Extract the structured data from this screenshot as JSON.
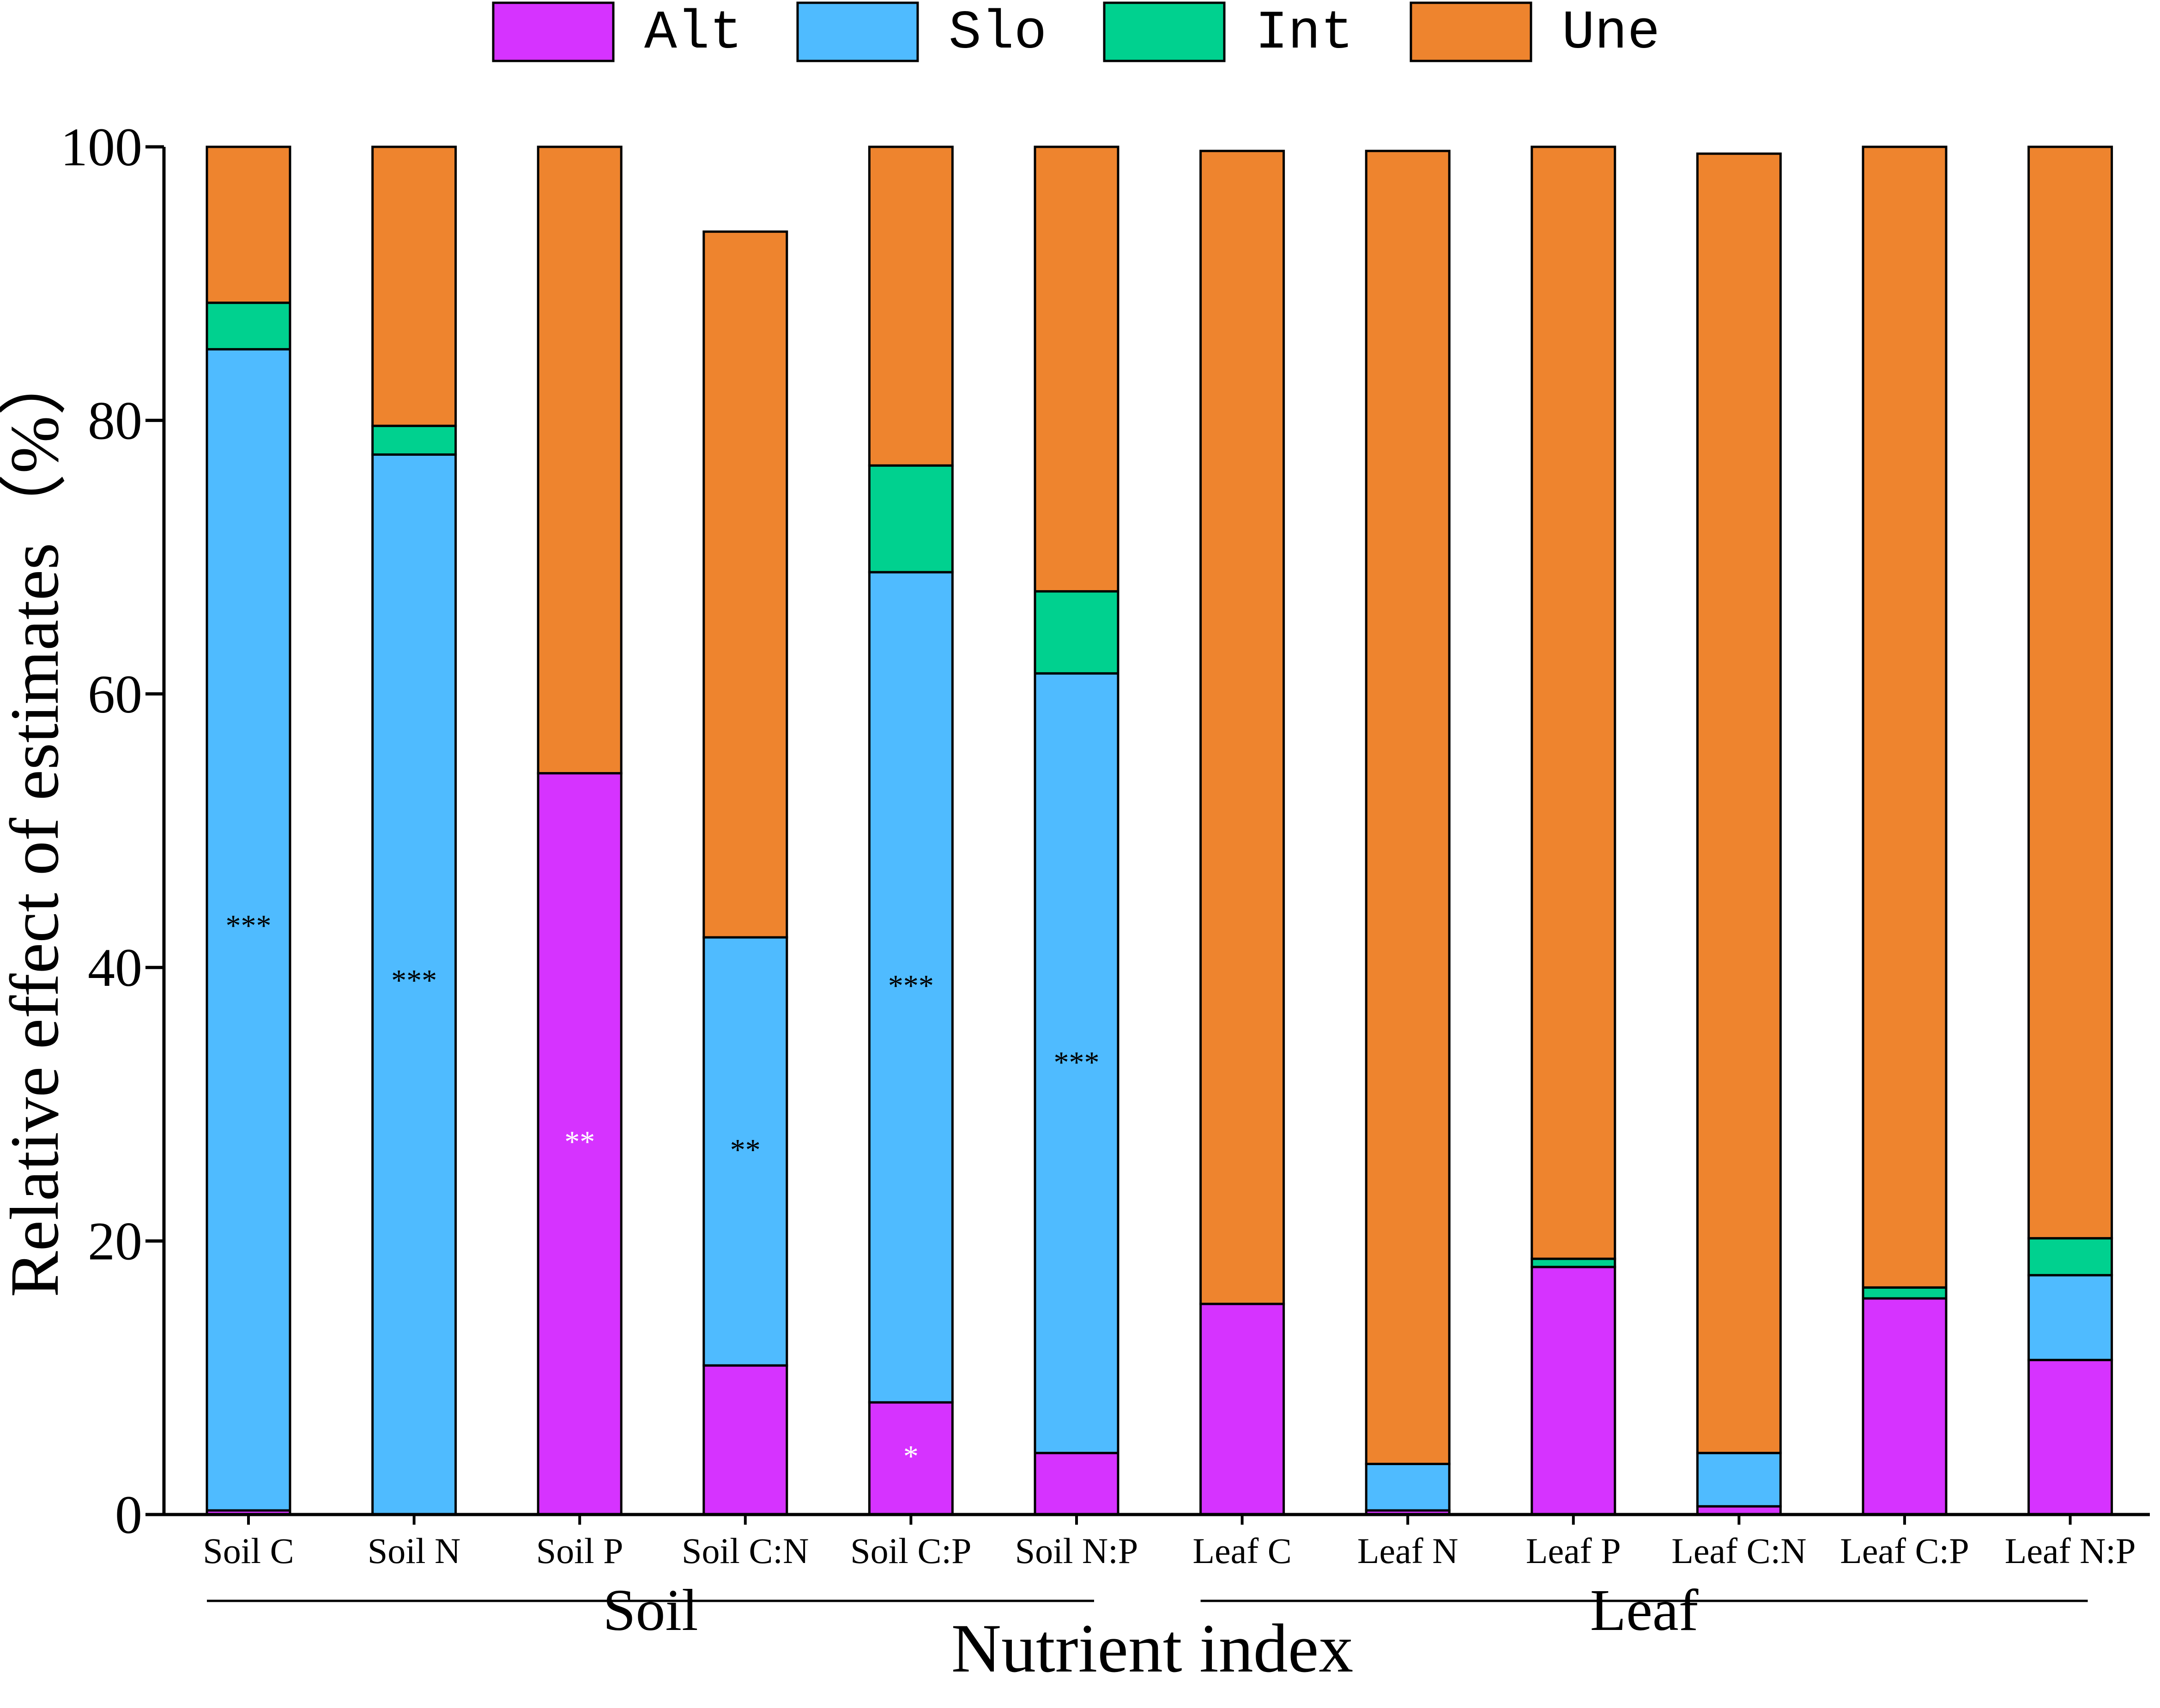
{
  "chart_data": {
    "type": "bar",
    "stacked": true,
    "title": "",
    "xlabel": "Nutrient index",
    "ylabel": "Relative effect of estimates（%）",
    "ylim": [
      0,
      100
    ],
    "yticks": [
      0,
      20,
      40,
      60,
      80,
      100
    ],
    "grid": false,
    "legend_position": "top",
    "categories": [
      "Soil C",
      "Soil N",
      "Soil P",
      "Soil C:N",
      "Soil C:P",
      "Soil N:P",
      "Leaf C",
      "Leaf N",
      "Leaf P",
      "Leaf C:N",
      "Leaf C:P",
      "Leaf N:P"
    ],
    "series": [
      {
        "name": "Alt",
        "color": "#D633FF",
        "values": [
          0.3,
          0,
          54.2,
          10.9,
          8.2,
          4.5,
          15.4,
          0.3,
          18.1,
          0.6,
          15.8,
          11.3
        ]
      },
      {
        "name": "Slo",
        "color": "#4FBBFF",
        "values": [
          84.9,
          77.5,
          0,
          31.3,
          60.7,
          57.0,
          0,
          3.4,
          0,
          3.9,
          0,
          6.2
        ]
      },
      {
        "name": "Int",
        "color": "#00D18F",
        "values": [
          3.4,
          2.1,
          0,
          0,
          7.8,
          6.0,
          0,
          0,
          0.6,
          0,
          0.8,
          2.7
        ]
      },
      {
        "name": "Une",
        "color": "#EE842E",
        "values": [
          11.4,
          20.4,
          45.8,
          51.6,
          23.3,
          32.5,
          84.3,
          96.0,
          81.3,
          95.0,
          83.4,
          79.8
        ]
      }
    ],
    "annotations": [
      {
        "category": "Soil C",
        "series": "Slo",
        "y": 43,
        "text": "***",
        "color": "#000000"
      },
      {
        "category": "Soil N",
        "series": "Slo",
        "y": 39,
        "text": "***",
        "color": "#000000"
      },
      {
        "category": "Soil P",
        "series": "Alt",
        "y": 27.2,
        "text": "**",
        "color": "#ffffff"
      },
      {
        "category": "Soil C:N",
        "series": "Slo",
        "y": 26.6,
        "text": "**",
        "color": "#000000"
      },
      {
        "category": "Soil C:P",
        "series": "Slo",
        "y": 38.6,
        "text": "***",
        "color": "#000000"
      },
      {
        "category": "Soil C:P",
        "series": "Alt",
        "y": 4.2,
        "text": "*",
        "color": "#ffffff"
      },
      {
        "category": "Soil N:P",
        "series": "Slo",
        "y": 33,
        "text": "***",
        "color": "#000000"
      }
    ],
    "groups": [
      {
        "label": "Soil",
        "from": "Soil C",
        "to": "Soil N:P"
      },
      {
        "label": "Leaf",
        "from": "Leaf C",
        "to": "Leaf N:P"
      }
    ]
  }
}
